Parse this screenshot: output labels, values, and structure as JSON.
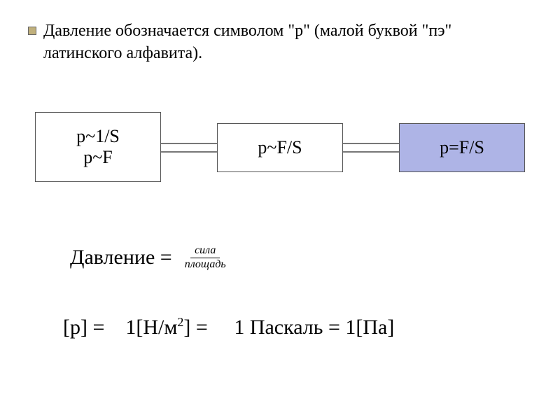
{
  "heading": "Давление обозначается символом \"р\" (малой буквой \"пэ\" латинского алфавита).",
  "flow": {
    "box1": {
      "line1": "p~1/S",
      "line2": "p~F"
    },
    "box2": "p~F/S",
    "box3": "p=F/S",
    "box1_bg": "#ffffff",
    "box2_bg": "#ffffff",
    "box3_bg": "#aeb4e6",
    "border_color": "#555555"
  },
  "pressure_def": {
    "label": "Давление =",
    "numerator": "сила",
    "denominator": "площадь"
  },
  "units": {
    "lhs": "[p] =",
    "mid_pre": "1[Н/м",
    "mid_exp": "2",
    "mid_post": "]  =",
    "rhs": "1 Паскаль = 1[Па]"
  },
  "colors": {
    "background": "#ffffff",
    "text": "#000000",
    "bullet": "#c0b07c"
  }
}
